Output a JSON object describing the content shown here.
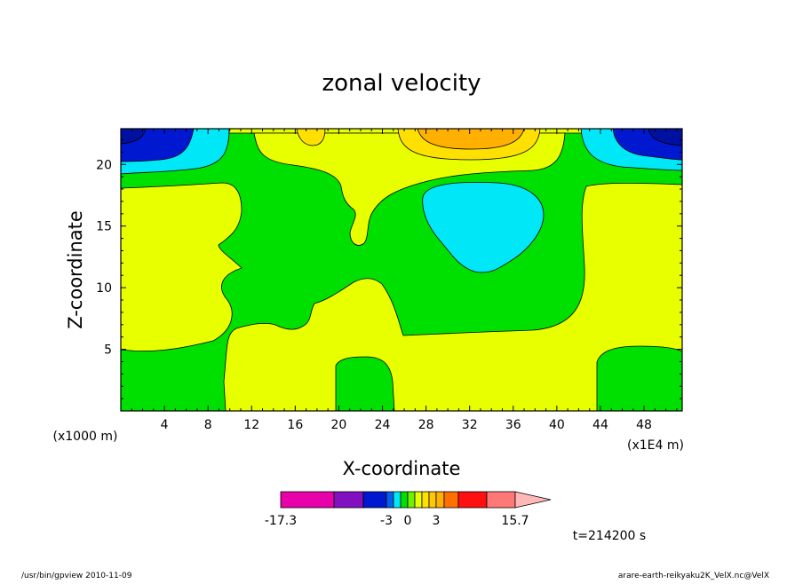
{
  "chart_data": {
    "type": "contour",
    "title": "zonal velocity",
    "xlabel": "X-coordinate",
    "ylabel": "Z-coordinate",
    "x_unit": "(x1E4 m)",
    "y_unit": "(x1000 m)",
    "xlim": [
      0,
      51.5
    ],
    "ylim": [
      0,
      22.9
    ],
    "x_ticks": [
      4,
      8,
      12,
      16,
      20,
      24,
      28,
      32,
      36,
      40,
      44,
      48
    ],
    "y_ticks": [
      5,
      10,
      15,
      20
    ],
    "colorbar": {
      "min_label": "-17.3",
      "max_label": "15.7",
      "labels": [
        "-17.3",
        "-3",
        "0",
        "3",
        "15.7"
      ],
      "colors": [
        "#e800a8",
        "#8010c0",
        "#0018d0",
        "#0060f0",
        "#00e8f8",
        "#00e000",
        "#e8ff00",
        "#ffe000",
        "#ffb000",
        "#ff7000",
        "#ff1010",
        "#ff7878",
        "#ffb8b8"
      ]
    },
    "regions": [
      {
        "level": "-3 to -1",
        "color": "#00e8f8",
        "desc": "blob centered near x=32, z=15"
      },
      {
        "level": "-1 to 0",
        "color": "#00e000"
      },
      {
        "level": "0 to 1",
        "color": "#e8ff00"
      },
      {
        "level": "1 to 2",
        "color": "#ffe000"
      },
      {
        "level": "2 to 3",
        "color": "#ffb000"
      },
      {
        "level": "below -3",
        "color": "#0018d0",
        "desc": "upper corners"
      }
    ],
    "time_label": "t=214200 s"
  },
  "footer": {
    "left": "/usr/bin/gpview  2010-11-09",
    "right": "arare-earth-reikyaku2K_VelX.nc@VelX"
  }
}
